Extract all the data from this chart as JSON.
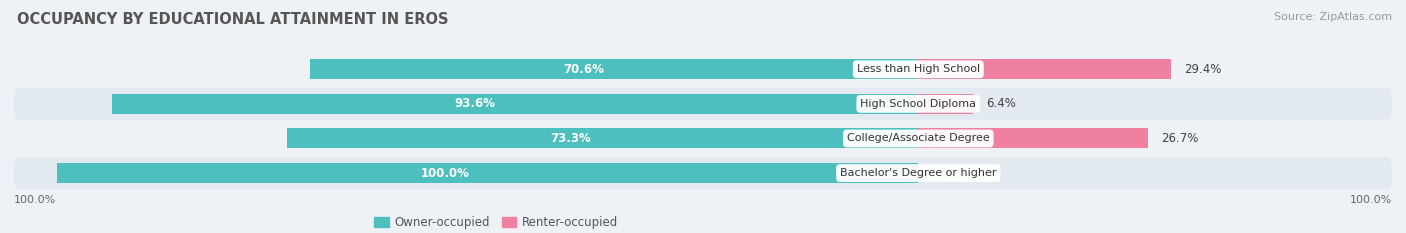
{
  "title": "OCCUPANCY BY EDUCATIONAL ATTAINMENT IN EROS",
  "source": "Source: ZipAtlas.com",
  "categories": [
    "Less than High School",
    "High School Diploma",
    "College/Associate Degree",
    "Bachelor's Degree or higher"
  ],
  "owner_values": [
    70.6,
    93.6,
    73.3,
    100.0
  ],
  "renter_values": [
    29.4,
    6.4,
    26.7,
    0.0
  ],
  "owner_color": "#4DBFBF",
  "renter_color": "#F080A0",
  "owner_label": "Owner-occupied",
  "renter_label": "Renter-occupied",
  "bar_height": 0.58,
  "owner_pct_label_color": "white",
  "renter_pct_label_color": "#444444",
  "title_fontsize": 10.5,
  "source_fontsize": 8,
  "label_fontsize": 8.5,
  "legend_fontsize": 8.5,
  "axis_label_left": "100.0%",
  "axis_label_right": "100.0%",
  "xlim_left": -105,
  "xlim_right": 55,
  "row_bg_light": "#eef2f7",
  "row_bg_dark": "#e2e9f0"
}
